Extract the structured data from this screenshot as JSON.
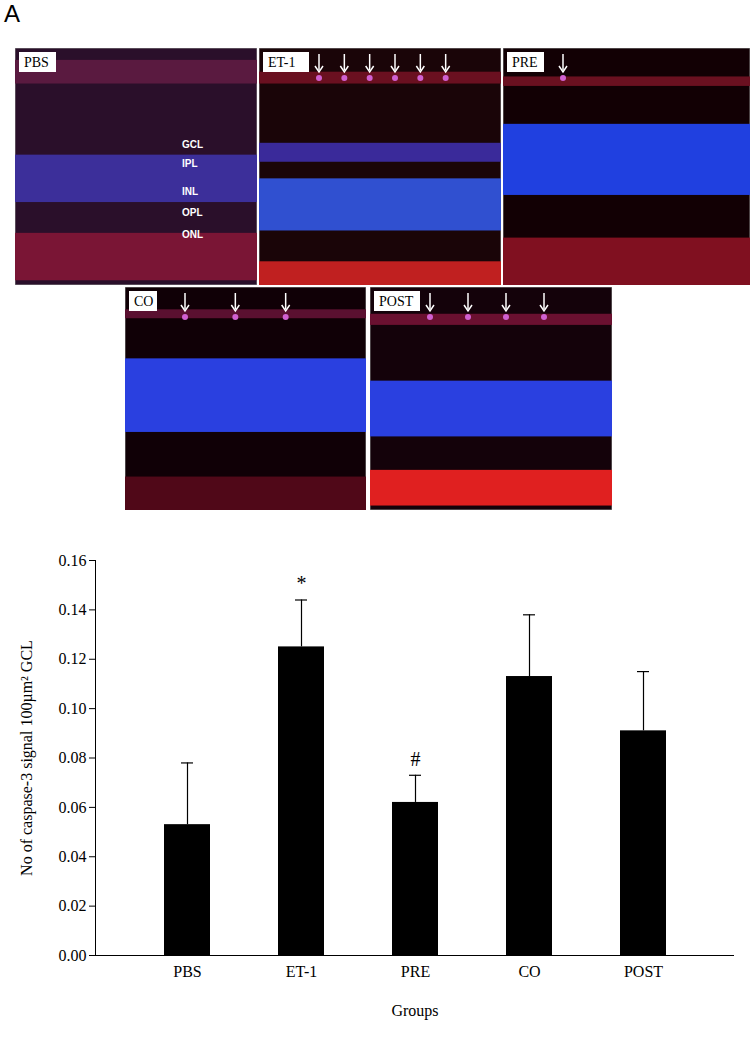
{
  "panel_label": "A",
  "micrographs": [
    {
      "label": "PBS",
      "arrows": 0,
      "layers": [
        "GCL",
        "IPL",
        "INL",
        "OPL",
        "ONL"
      ]
    },
    {
      "label": "ET-1",
      "arrows": 6
    },
    {
      "label": "PRE",
      "arrows": 1
    },
    {
      "label": "CO",
      "arrows": 3
    },
    {
      "label": "POST",
      "arrows": 4
    }
  ],
  "chart_data": {
    "type": "bar",
    "categories": [
      "PBS",
      "ET-1",
      "PRE",
      "CO",
      "POST"
    ],
    "values": [
      0.053,
      0.125,
      0.062,
      0.113,
      0.091
    ],
    "errors": [
      0.025,
      0.019,
      0.011,
      0.025,
      0.024
    ],
    "color": "#000000",
    "x_label": "Groups",
    "y_label": "No of caspase-3 signal 100µm² GCL",
    "ylim": [
      0,
      0.16
    ],
    "yticks": [
      {
        "value": 0,
        "label": "0.00"
      },
      {
        "value": 0.02,
        "label": "0.02"
      },
      {
        "value": 0.04,
        "label": "0.04"
      },
      {
        "value": 0.06,
        "label": "0.06"
      },
      {
        "value": 0.08,
        "label": "0.08"
      },
      {
        "value": 0.1,
        "label": "0.10"
      },
      {
        "value": 0.12,
        "label": "0.12"
      },
      {
        "value": 0.14,
        "label": "0.14"
      },
      {
        "value": 0.16,
        "label": "0.16"
      }
    ],
    "annotations": [
      {
        "category": "ET-1",
        "text": "*"
      },
      {
        "category": "PRE",
        "text": "#"
      }
    ],
    "grid": false
  }
}
